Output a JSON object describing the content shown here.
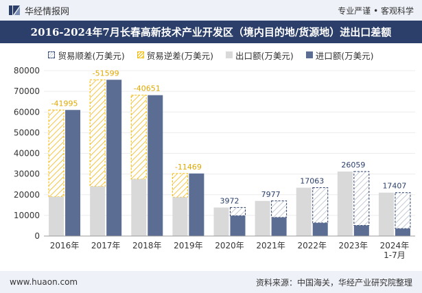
{
  "header": {
    "brand": "华经情报网",
    "tagline": "专业严谨 • 客观科学"
  },
  "title": "2016-2024年7月长春高新技术产业开发区（境内目的地/货源地）进出口差额",
  "legend": {
    "surplus": "贸易顺差(万美元)",
    "deficit": "贸易逆差(万美元)",
    "exports": "出口额(万美元)",
    "imports": "进口额(万美元)"
  },
  "footer": {
    "url": "www.huaon.com",
    "source": "资料来源：中国海关，华经产业研究院整理"
  },
  "colors": {
    "exports": "#d9d9d9",
    "imports": "#5b6d93",
    "deficit": "#f5b800",
    "surplus": "#2b3f6a",
    "title_bg": "#2b3f6a"
  },
  "chart_data": {
    "type": "bar",
    "categories": [
      "2016年",
      "2017年",
      "2018年",
      "2019年",
      "2020年",
      "2021年",
      "2022年",
      "2023年",
      "2024年\n1-7月"
    ],
    "series": [
      {
        "name": "出口额(万美元)",
        "values": [
          19000,
          24000,
          27500,
          18800,
          13800,
          17000,
          23400,
          31200,
          21000
        ]
      },
      {
        "name": "进口额(万美元)",
        "values": [
          60995,
          75599,
          68151,
          30269,
          9828,
          9023,
          6337,
          5141,
          3593
        ]
      }
    ],
    "balance": [
      -41995,
      -51599,
      -40651,
      -11469,
      3972,
      7977,
      17063,
      26059,
      17407
    ],
    "balance_labels": [
      "-41995",
      "-51599",
      "-40651",
      "-11469",
      "3972",
      "7977",
      "17063",
      "26059",
      "17407"
    ],
    "y_ticks": [
      "0",
      "10000",
      "20000",
      "30000",
      "40000",
      "50000",
      "60000",
      "70000",
      "80000"
    ],
    "ylim": [
      0,
      80000
    ]
  }
}
